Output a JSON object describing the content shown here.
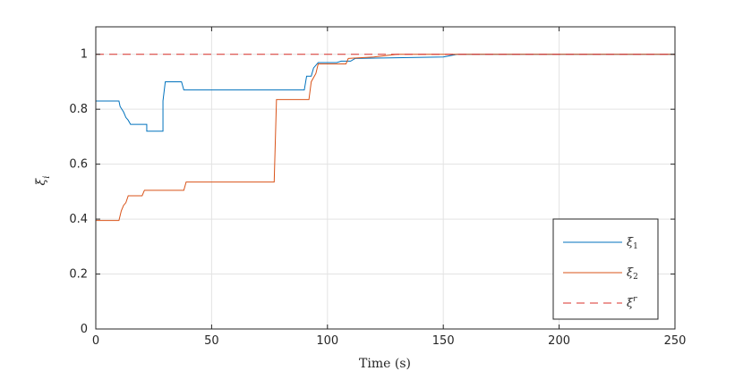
{
  "chart_data": {
    "type": "line",
    "title": "",
    "xlabel": "Time (s)",
    "ylabel": "ξi",
    "xlim": [
      0,
      250
    ],
    "ylim": [
      0,
      1.1
    ],
    "xticks": [
      0,
      50,
      100,
      150,
      200,
      250
    ],
    "yticks": [
      0,
      0.2,
      0.4,
      0.6,
      0.8,
      1
    ],
    "xtick_labels": [
      "0",
      "50",
      "100",
      "150",
      "200",
      "250"
    ],
    "ytick_labels": [
      "0",
      "0.2",
      "0.4",
      "0.6",
      "0.8",
      "1"
    ],
    "grid": true,
    "legend_position": "lower-right",
    "series": [
      {
        "name": "ξ1",
        "color": "#0072BD",
        "style": "solid",
        "points": [
          [
            0,
            0.83
          ],
          [
            10,
            0.83
          ],
          [
            10.5,
            0.81
          ],
          [
            12,
            0.79
          ],
          [
            13,
            0.77
          ],
          [
            14,
            0.76
          ],
          [
            15,
            0.745
          ],
          [
            22,
            0.745
          ],
          [
            22,
            0.72
          ],
          [
            29,
            0.72
          ],
          [
            29,
            0.83
          ],
          [
            30,
            0.9
          ],
          [
            37,
            0.9
          ],
          [
            38,
            0.87
          ],
          [
            90,
            0.87
          ],
          [
            91,
            0.92
          ],
          [
            93,
            0.92
          ],
          [
            94,
            0.95
          ],
          [
            96,
            0.97
          ],
          [
            104,
            0.97
          ],
          [
            106,
            0.975
          ],
          [
            110,
            0.975
          ],
          [
            112,
            0.985
          ],
          [
            150,
            0.99
          ],
          [
            156,
            1.0
          ],
          [
            250,
            1.0
          ]
        ]
      },
      {
        "name": "ξ2",
        "color": "#D95319",
        "style": "solid",
        "points": [
          [
            0,
            0.395
          ],
          [
            10,
            0.395
          ],
          [
            11,
            0.43
          ],
          [
            12,
            0.45
          ],
          [
            13,
            0.46
          ],
          [
            14,
            0.485
          ],
          [
            20,
            0.485
          ],
          [
            21,
            0.505
          ],
          [
            38,
            0.505
          ],
          [
            39,
            0.535
          ],
          [
            77,
            0.535
          ],
          [
            78,
            0.835
          ],
          [
            92,
            0.835
          ],
          [
            93,
            0.9
          ],
          [
            95,
            0.93
          ],
          [
            96,
            0.965
          ],
          [
            108,
            0.965
          ],
          [
            109,
            0.985
          ],
          [
            120,
            0.99
          ],
          [
            130,
            1.0
          ],
          [
            250,
            1.0
          ]
        ]
      },
      {
        "name": "ξr",
        "color": "#D9302B",
        "style": "dashed",
        "points": [
          [
            0,
            1.0
          ],
          [
            250,
            1.0
          ]
        ]
      }
    ],
    "legend": [
      {
        "label": "ξ1",
        "main": "ξ",
        "sub": "1",
        "sup": ""
      },
      {
        "label": "ξ2",
        "main": "ξ",
        "sub": "2",
        "sup": ""
      },
      {
        "label": "ξr",
        "main": "ξ",
        "sub": "",
        "sup": "r"
      }
    ]
  }
}
